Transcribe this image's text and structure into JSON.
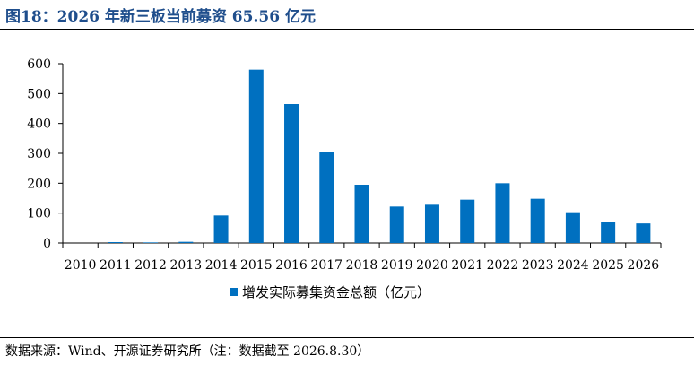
{
  "figure": {
    "title": "图18：2026 年新三板当前募资 65.56 亿元",
    "source": "数据来源：Wind、开源证券研究所（注：数据截至 2026.8.30）"
  },
  "chart_data": {
    "type": "bar",
    "categories": [
      "2010",
      "2011",
      "2012",
      "2013",
      "2014",
      "2015",
      "2016",
      "2017",
      "2018",
      "2019",
      "2020",
      "2021",
      "2022",
      "2023",
      "2024",
      "2025",
      "2026"
    ],
    "series": [
      {
        "name": "增发实际募集资金总额（亿元）",
        "values": [
          0,
          3,
          2,
          4,
          92,
          580,
          465,
          305,
          195,
          122,
          128,
          145,
          200,
          148,
          103,
          70,
          65.56
        ]
      }
    ],
    "yticks": [
      0,
      100,
      200,
      300,
      400,
      500,
      600
    ],
    "ylim": [
      0,
      600
    ],
    "grid": false,
    "legend": "bottom-center",
    "color": "#0070c0"
  }
}
